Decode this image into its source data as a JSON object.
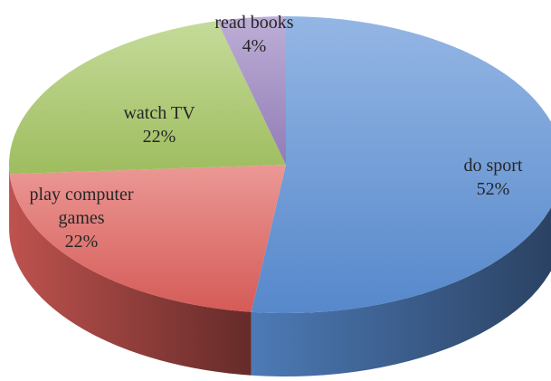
{
  "chart_data": {
    "type": "pie",
    "categories": [
      "do sport",
      "play computer games",
      "watch TV",
      "read books"
    ],
    "values": [
      52,
      22,
      22,
      4
    ],
    "value_labels": [
      "52%",
      "22%",
      "22%",
      "4%"
    ],
    "colors": [
      "#5b8fd6",
      "#e0605c",
      "#a6c763",
      "#9a82c0"
    ],
    "start_angle": 0,
    "direction": "clockwise",
    "3d": true
  }
}
